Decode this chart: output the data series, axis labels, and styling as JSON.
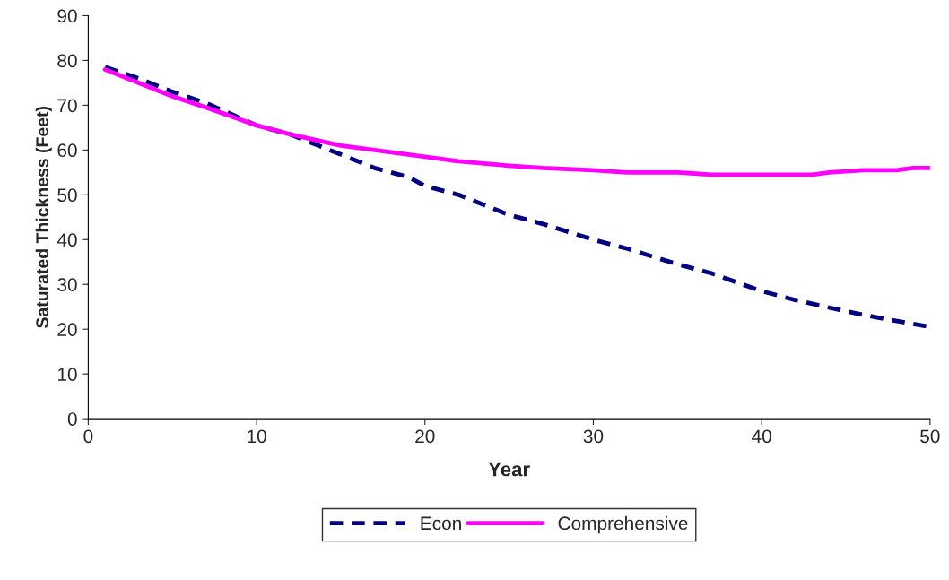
{
  "chart_data": {
    "type": "line",
    "xlabel": "Year",
    "ylabel": "Saturated Thickness (Feet)",
    "xlim": [
      0,
      50
    ],
    "xticks": [
      0,
      10,
      20,
      30,
      40,
      50
    ],
    "ylim": [
      0,
      90
    ],
    "yticks": [
      0,
      10,
      20,
      30,
      40,
      50,
      60,
      70,
      80,
      90
    ],
    "grid": false,
    "legend": "bottom",
    "series": [
      {
        "name": "Econ",
        "color": "#000080",
        "line_style": "dashed",
        "x": [
          1,
          3,
          5,
          7,
          10,
          12,
          15,
          17,
          19,
          20,
          22,
          25,
          27,
          30,
          32,
          35,
          37,
          40,
          42,
          45,
          47,
          50
        ],
        "values": [
          78.5,
          76,
          73,
          70.5,
          65.5,
          63.5,
          59,
          56,
          54,
          52,
          50,
          45.5,
          43.5,
          40,
          38,
          34.5,
          32.5,
          28.5,
          26.5,
          24,
          22.5,
          20.5
        ]
      },
      {
        "name": "Comprehensive",
        "color": "#ff00ff",
        "line_style": "solid",
        "x": [
          1,
          3,
          5,
          7,
          10,
          12,
          15,
          17,
          20,
          22,
          25,
          27,
          30,
          32,
          35,
          37,
          40,
          43,
          44,
          46,
          48,
          49,
          50
        ],
        "values": [
          78,
          75,
          72,
          69.5,
          65.5,
          63.5,
          61,
          60,
          58.5,
          57.5,
          56.5,
          56,
          55.5,
          55,
          55,
          54.5,
          54.5,
          54.5,
          55,
          55.5,
          55.5,
          56,
          56
        ]
      }
    ]
  }
}
